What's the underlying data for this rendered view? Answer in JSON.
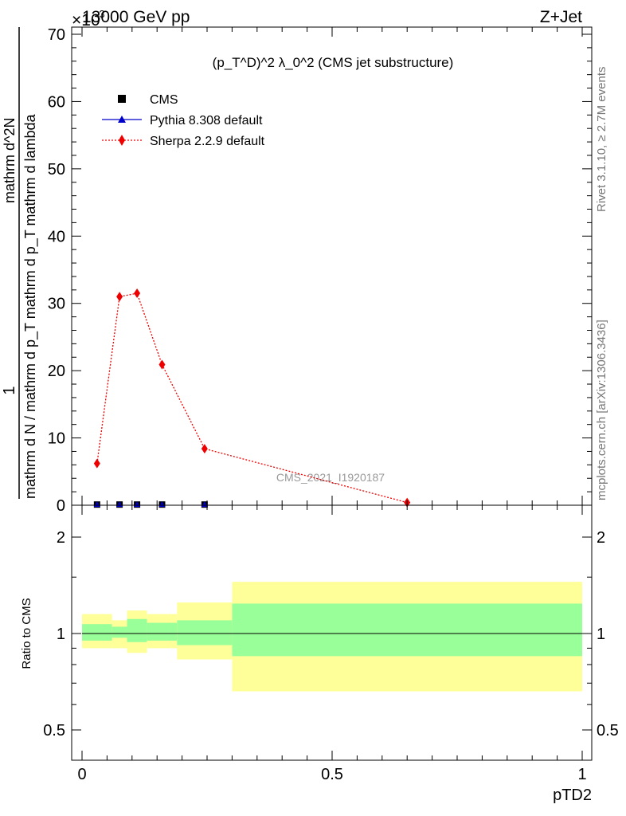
{
  "header": {
    "left_label": "13000 GeV pp",
    "right_label": "Z+Jet",
    "exponent_label": "×10",
    "exponent_power": "-3"
  },
  "plot_title": "(p_T^D)^2 λ_0^2 (CMS jet substructure)",
  "side_labels": {
    "rivet": "Rivet 3.1.10, ≥ 2.7M events",
    "mcplots": "mcplots.cern.ch [arXiv:1306.3436]"
  },
  "watermark": "CMS_2021_I1920187",
  "y_label_main": {
    "numerator": "1",
    "denominator": "mathrm d N / mathrm d p_T mathrm d p_T mathrm d lambda",
    "numerator_right": "mathrm d^2N"
  },
  "y_label_ratio": "Ratio to CMS",
  "x_label": "pTD2",
  "legend": [
    {
      "name": "CMS",
      "color": "#000000",
      "marker": "square"
    },
    {
      "name": "Pythia 8.308 default",
      "color": "#0000cc",
      "marker": "triangle"
    },
    {
      "name": "Sherpa 2.2.9 default",
      "color": "#ee0000",
      "marker": "diamond"
    }
  ],
  "chart_data": [
    {
      "type": "line",
      "panel": "main",
      "x_range": [
        0,
        1
      ],
      "y_range": [
        0,
        70
      ],
      "y_ticks": [
        "0",
        "10",
        "20",
        "30",
        "40",
        "50",
        "60",
        "70"
      ],
      "x_ticks": [
        "0",
        "0.5",
        "1"
      ],
      "series": [
        {
          "name": "CMS",
          "x": [
            0.03,
            0.075,
            0.11,
            0.16,
            0.245
          ],
          "y": [
            0.1,
            0.1,
            0.1,
            0.1,
            0.1
          ],
          "color": "#000000"
        },
        {
          "name": "Pythia 8.308 default",
          "x": [
            0.03,
            0.075,
            0.11,
            0.16,
            0.245
          ],
          "y": [
            0.1,
            0.1,
            0.1,
            0.1,
            0.1
          ],
          "color": "#0000cc"
        },
        {
          "name": "Sherpa 2.2.9 default",
          "x": [
            0.03,
            0.075,
            0.11,
            0.16,
            0.245,
            0.65
          ],
          "y": [
            6.2,
            31,
            31.5,
            20.9,
            8.4,
            0.4
          ],
          "color": "#ee0000"
        }
      ]
    },
    {
      "type": "area",
      "panel": "ratio",
      "x_range": [
        0,
        1
      ],
      "y_range": [
        0.4,
        2.3
      ],
      "y_scale": "log",
      "y_ticks": [
        "0.5",
        "1",
        "2"
      ],
      "x_ticks": [
        "0",
        "0.5",
        "1"
      ],
      "bins": [
        {
          "x0": 0.0,
          "x1": 0.06,
          "inner": [
            0.95,
            1.07
          ],
          "outer": [
            0.9,
            1.15
          ]
        },
        {
          "x0": 0.06,
          "x1": 0.09,
          "inner": [
            0.97,
            1.05
          ],
          "outer": [
            0.9,
            1.1
          ]
        },
        {
          "x0": 0.09,
          "x1": 0.13,
          "inner": [
            0.94,
            1.11
          ],
          "outer": [
            0.87,
            1.18
          ]
        },
        {
          "x0": 0.13,
          "x1": 0.19,
          "inner": [
            0.95,
            1.08
          ],
          "outer": [
            0.9,
            1.15
          ]
        },
        {
          "x0": 0.19,
          "x1": 0.3,
          "inner": [
            0.92,
            1.1
          ],
          "outer": [
            0.83,
            1.25
          ]
        },
        {
          "x0": 0.3,
          "x1": 1.0,
          "inner": [
            0.85,
            1.24
          ],
          "outer": [
            0.66,
            1.45
          ]
        }
      ],
      "reference": 1.0
    }
  ],
  "colors": {
    "inner_band": "#99ff99",
    "outer_band": "#ffff99",
    "frame": "#000000"
  }
}
